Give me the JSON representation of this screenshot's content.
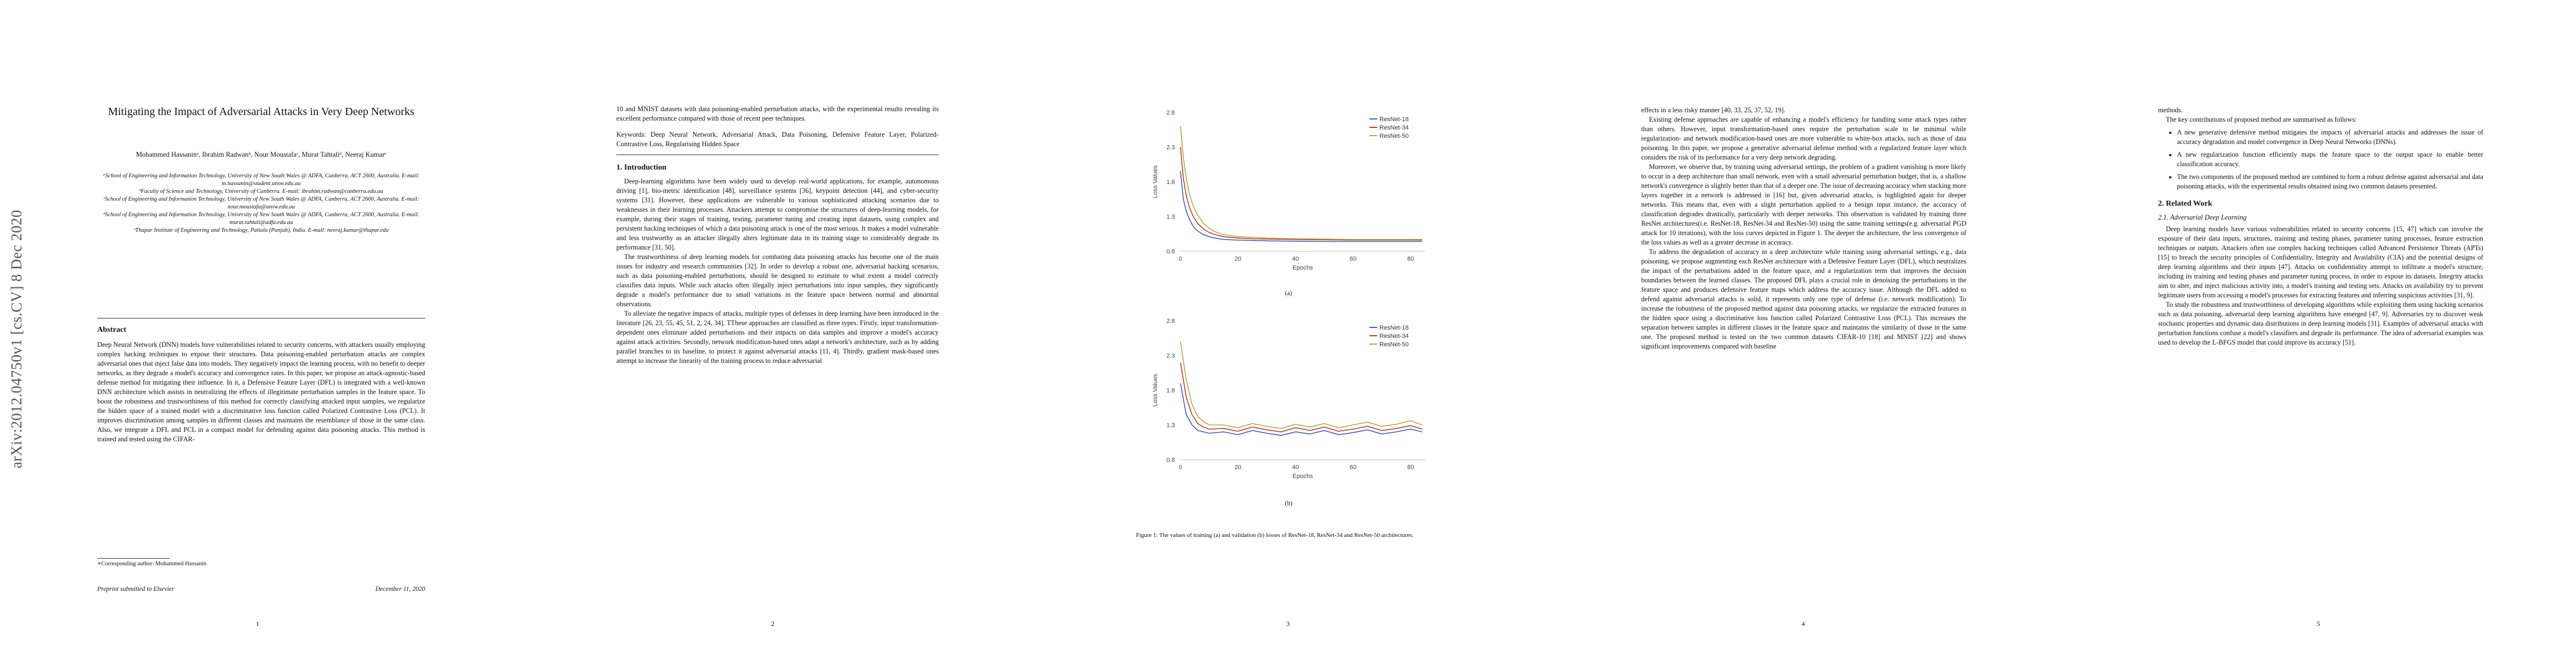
{
  "page1": {
    "arxiv_id": "arXiv:2012.04750v1  [cs.CV]  8 Dec 2020",
    "title": "Mitigating the Impact of Adversarial Attacks in Very Deep Networks",
    "authors": "Mohammed Hassaninᵃ, Ibrahim Radwanᵇ, Nour Moustafaᶜ, Murat Tahtaliᵈ, Neeraj Kumarᵉ",
    "affiliations": [
      "ᵃSchool of Engineering and Information Technology, University of New South Wales @ ADFA, Canberra, ACT 2600, Australia. E-mail: m.hassanin@student.unsw.edu.au",
      "ᵇFaculty of Science and Technology, University of Canberra. E-mail: ibrahim.radwan@canberra.edu.au",
      "ᶜSchool of Engineering and Information Technology, University of New South Wales @ ADFA, Canberra, ACT 2600, Australia. E-mail: nour.moustafa@unsw.edu.au",
      "ᵈSchool of Engineering and Information Technology, University of New South Wales @ ADFA, Canberra, ACT 2600, Australia. E-mail: murat.tahtali@adfa.edu.au",
      "ᵉThapar Institute of Engineering and Technology, Patiala (Punjab), India. E-mail: neeraj.kumar@thapar.edu"
    ],
    "abstract_heading": "Abstract",
    "abstract": "Deep Neural Network (DNN) models have vulnerabilities related to security concerns, with attackers usually employing complex hacking techniques to expose their structures. Data poisoning-enabled perturbation attacks are complex adversarial ones that inject false data into models. They negatively impact the learning process, with no benefit to deeper networks, as they degrade a model's accuracy and convergence rates. In this paper, we propose an attack-agnostic-based defense method for mitigating their influence. In it, a Defensive Feature Layer (DFL) is integrated with a well-known DNN architecture which assists in neutralizing the effects of illegitimate perturbation samples in the feature space. To boost the robustness and trustworthiness of this method for correctly classifying attacked input samples, we regularize the hidden space of a trained model with a discriminative loss function called Polarized Contrastive Loss (PCL). It improves discrimination among samples in different classes and maintains the resemblance of those in the same class. Also, we integrate a DFL and PCL in a compact model for defending against data poisoning attacks. This method is trained and tested using the CIFAR-",
    "footnote": "∗Corresponding author: Mohammed Hassanin",
    "preprint": "Preprint submitted to Elsevier",
    "date": "December 11, 2020",
    "page_number": "1"
  },
  "page2": {
    "abstract_end": "10 and MNIST datasets with data poisoning-enabled perturbation attacks, with the experimental results revealing its excellent performance compared with those of recent peer techniques.",
    "keywords": "Keywords: Deep Neural Network, Adversarial Attack, Data Poisoning, Defensive Feature Layer, Polarized-Contrastive Loss, Regularising Hidden Space",
    "section_title": "1. Introduction",
    "paragraphs": [
      "Deep-learning algorithms have been widely used to develop real-world applications, for example, autonomous driving [1], bio-metric identification [48], surveillance systems [36], keypoint detection [44], and cyber-security systems [31]. However, these applications are vulnerable to various sophisticated attacking scenarios due to weaknesses in their learning processes. Attackers attempt to compromise the structures of deep-learning models, for example, during their stages of training, testing, parameter tuning and creating input datasets, using complex and persistent hacking techniques of which a data poisoning attack is one of the most serious. It makes a model vulnerable and less trustworthy as an attacker illegally alters legitimate data in its training stage to considerably degrade its performance [31, 50].",
      "The trustworthiness of deep learning models for combating data poisoning attacks has become one of the main issues for industry and research communities [32]. In order to develop a robust one, adversarial hacking scenarios, such as data poisoning-enabled perturbations, should be designed to estimate to what extent a model correctly classifies data inputs. While such attacks often illegally inject perturbations into input samples, they significantly degrade a model's performance due to small variations in the feature space between normal and abnormal observations.",
      "To alleviate the negative impacts of attacks, multiple types of defenses in deep learning have been introduced in the literature [26, 23, 55, 45, 51, 2, 24, 34]. TThese approaches are classified as three types. Firstly, input transformation-dependent ones eliminate added perturbations and their impacts on data samples and improve a model's accuracy against attack activities. Secondly, network modification-based ones adapt a network's architecture, such as by adding parallel branches to its baseline, to protect it against adversarial attacks [11, 4]. Thirdly, gradient mask-based ones attempt to increase the linearity of the training process to reduce adversarial"
    ],
    "page_number": "2"
  },
  "page3": {
    "chart_a_label": "(a)",
    "chart_b_label": "(b)",
    "caption": "Figure 1: The values of training (a) and validation (b) losses of ResNet-18, ResNet-34 and ResNet-50 architectures.",
    "page_number": "3"
  },
  "chart_data": [
    {
      "type": "line",
      "xlabel": "Epochs",
      "ylabel": "Loss Values",
      "xlim": [
        0,
        85
      ],
      "ylim": [
        0.8,
        2.8
      ],
      "xticks": [
        0,
        20,
        40,
        60,
        80
      ],
      "yticks": [
        0.8,
        1.3,
        1.8,
        2.3,
        2.8
      ],
      "legend_position": "top-right",
      "series": [
        {
          "name": "ResNet-18",
          "color": "#3b5fb5",
          "x": [
            0,
            1,
            2,
            3,
            4,
            5,
            6,
            8,
            10,
            12,
            15,
            20,
            25,
            30,
            40,
            50,
            60,
            70,
            80,
            84
          ],
          "y": [
            1.95,
            1.55,
            1.38,
            1.27,
            1.19,
            1.13,
            1.09,
            1.04,
            1.01,
            0.99,
            0.97,
            0.96,
            0.955,
            0.95,
            0.945,
            0.94,
            0.94,
            0.94,
            0.94,
            0.94
          ]
        },
        {
          "name": "ResNet-34",
          "color": "#c0392b",
          "x": [
            0,
            1,
            2,
            3,
            4,
            5,
            6,
            8,
            10,
            12,
            15,
            20,
            25,
            30,
            40,
            50,
            60,
            70,
            80,
            84
          ],
          "y": [
            2.3,
            1.85,
            1.6,
            1.45,
            1.34,
            1.26,
            1.2,
            1.12,
            1.07,
            1.04,
            1.01,
            0.99,
            0.98,
            0.975,
            0.97,
            0.965,
            0.96,
            0.96,
            0.96,
            0.96
          ]
        },
        {
          "name": "ResNet-50",
          "color": "#b5a642",
          "x": [
            0,
            1,
            2,
            3,
            4,
            5,
            6,
            8,
            10,
            12,
            15,
            20,
            25,
            30,
            40,
            50,
            60,
            70,
            80,
            84
          ],
          "y": [
            2.6,
            2.15,
            1.85,
            1.65,
            1.5,
            1.4,
            1.32,
            1.2,
            1.13,
            1.08,
            1.04,
            1.01,
            1.0,
            0.99,
            0.98,
            0.975,
            0.97,
            0.97,
            0.97,
            0.97
          ]
        }
      ]
    },
    {
      "type": "line",
      "xlabel": "Epochs",
      "ylabel": "Loss Values",
      "xlim": [
        0,
        85
      ],
      "ylim": [
        0.8,
        2.8
      ],
      "xticks": [
        0,
        20,
        40,
        60,
        80
      ],
      "yticks": [
        0.8,
        1.3,
        1.8,
        2.3,
        2.8
      ],
      "legend_position": "top-right",
      "series": [
        {
          "name": "ResNet-18",
          "color": "#3b5fb5",
          "x": [
            0,
            2,
            4,
            6,
            8,
            10,
            15,
            20,
            25,
            30,
            35,
            40,
            45,
            50,
            55,
            60,
            65,
            70,
            75,
            80,
            84
          ],
          "y": [
            1.9,
            1.45,
            1.3,
            1.22,
            1.2,
            1.18,
            1.2,
            1.16,
            1.22,
            1.18,
            1.15,
            1.2,
            1.17,
            1.22,
            1.16,
            1.19,
            1.23,
            1.17,
            1.2,
            1.24,
            1.2
          ]
        },
        {
          "name": "ResNet-34",
          "color": "#c0392b",
          "x": [
            0,
            2,
            4,
            6,
            8,
            10,
            15,
            20,
            25,
            30,
            35,
            40,
            45,
            50,
            55,
            60,
            65,
            70,
            75,
            80,
            84
          ],
          "y": [
            2.2,
            1.7,
            1.45,
            1.32,
            1.27,
            1.24,
            1.25,
            1.21,
            1.27,
            1.23,
            1.2,
            1.26,
            1.22,
            1.27,
            1.21,
            1.24,
            1.28,
            1.22,
            1.25,
            1.29,
            1.24
          ]
        },
        {
          "name": "ResNet-50",
          "color": "#b5a642",
          "x": [
            0,
            2,
            4,
            6,
            8,
            10,
            15,
            20,
            25,
            30,
            35,
            40,
            45,
            50,
            55,
            60,
            65,
            70,
            75,
            80,
            84
          ],
          "y": [
            2.5,
            1.95,
            1.6,
            1.42,
            1.35,
            1.3,
            1.3,
            1.26,
            1.32,
            1.28,
            1.25,
            1.31,
            1.27,
            1.32,
            1.26,
            1.3,
            1.34,
            1.28,
            1.31,
            1.36,
            1.3
          ]
        }
      ]
    }
  ],
  "page4": {
    "paragraphs": [
      "effects in a less risky manner [40, 33, 25, 37, 52, 19].",
      "Existing defense approaches are capable of enhancing a model's efficiency for handling some attack types rather than others. However, input transformation-based ones require the perturbation scale to be minimal while regularization- and network modification-based ones are more vulnerable to white-box attacks, such as those of data poisoning. In this paper, we propose a generative adversarial defense method with a regularized feature layer which considers the risk of its performance for a very deep network degrading.",
      "Moreover, we observe that, by training using adversarial settings, the problem of a gradient vanishing is more likely to occur in a deep architecture than small network, even with a small adversarial perturbation budget, that is, a shallow network's convergence is slightly better than that of a deeper one. The issue of decreasing accuracy when stacking more layers together in a network is addressed in [16] but, given adversarial attacks, is highlighted again for deeper networks. This means that, even with a slight perturbation applied to a benign input instance, the accuracy of classification degrades drastically, particularly with deeper networks. This observation is validated by training three ResNet architectures(i.e. ResNet-18, ResNet-34 and ResNet-50) using the same training settings(e.g. adversarial PGD attack for 10 iterations), with the loss curves depicted in Figure 1. The deeper the architecture, the less convergence of the loss values as well as a greater decrease in accuracy.",
      "To address the degradation of accuracy in a deep architecture while training using adversarial settings, e.g., data poisoning, we propose augmenting each ResNet architecture with a Defensive Feature Layer (DFL), which neutralizes the impact of the perturbations added in the feature space, and a regularization term that improves the decision boundaries between the learned classes. The proposed DFL plays a crucial role in denoising the perturbations in the feature space and produces defensive feature maps which address the accuracy issue. Although the DFL added to defend against adversarial attacks is solid, it represents only one type of defense (i.e. network modification). To increase the robustness of the proposed method against data poisoning attacks, we regularize the extracted features in the hidden space using a discriminative loss function called Polarized Contrastive Loss (PCL). This increases the separation between samples in different classes in the feature space and maintains the similarity of those in the same one. The proposed method is tested on the two common datasets CIFAR-10 [18] and MNIST [22] and shows significant improvements compared with baseline"
    ],
    "page_number": "4"
  },
  "page5": {
    "intro_line": "methods.",
    "contrib_line": "The key contributions of proposed method are summarised as follows:",
    "bullets": [
      "A new generative defensive method mitigates the impacts of adversarial attacks and addresses the issue of accuracy degradation and model convergence in Deep Neural Networks (DNNs).",
      "A new regularization function efficiently maps the feature space to the output space to enable better classification accuracy.",
      "The two components of the proposed method are combined to form a robust defense against adversarial and data poisoning attacks, with the experimental results obtained using two common datasets presented."
    ],
    "section_title": "2. Related Work",
    "subsection_title": "2.1. Adversarial Deep Learning",
    "paragraphs": [
      "Deep learning models have various vulnerabilities related to security concerns [15, 47] which can involve the exposure of their data inputs, structures, training and testing phases, parameter tuning processes, feature extraction techniques or outputs. Attackers often use complex hacking techniques called Advanced Persistence Threats (APTs) [15] to breach the security principles of Confidentiality, Integrity and Availability (CIA) and the potential designs of deep learning algorithms and their inputs [47]. Attacks on confidentiality attempt to infiltrate a model's structure, including its training and testing phases and parameter tuning process, in order to expose its datasets. Integrity attacks aim to alter, and inject malicious activity into, a model's training and testing sets. Attacks on availability try to prevent legitimate users from accessing a model's processes for extracting features and inferring suspicious activities [31, 9].",
      "To study the robustness and trustworthiness of developing algorithms while exploiting them using hacking scenarios such as data poisoning, adversarial deep learning algorithms have emerged [47, 9]. Adversaries try to discover weak stochastic properties and dynamic data distributions in deep learning models [31]. Examples of adversarial attacks with perturbation functions confuse a model's classifiers and degrade its performance. The idea of adversarial examples was used to develop the L-BFGS model that could improve its accuracy [51]."
    ],
    "page_number": "5"
  }
}
